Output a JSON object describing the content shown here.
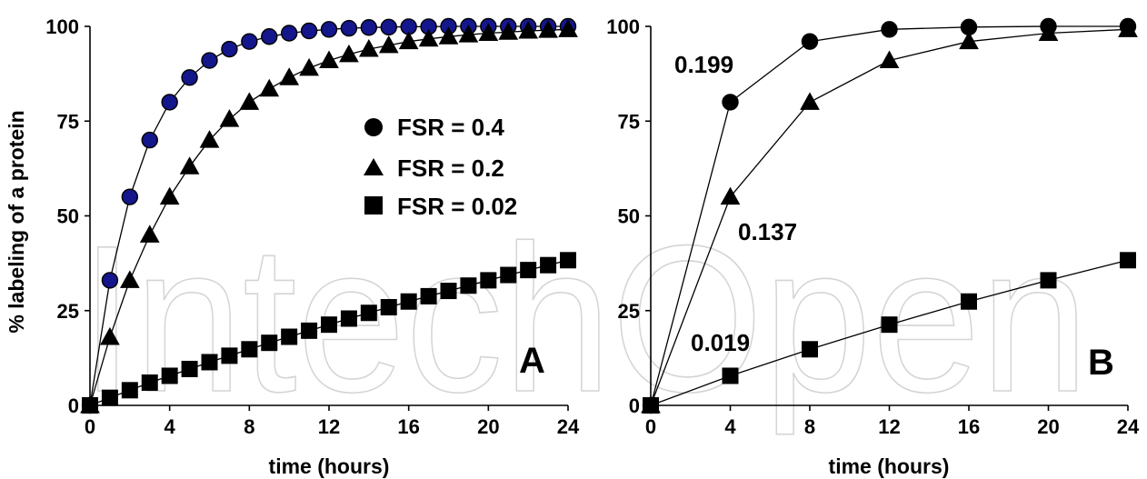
{
  "watermark": "IntechOpen",
  "colors": {
    "fsr04_fill": "#14168c",
    "ink": "#000000",
    "watermark": "#d4d4d4"
  },
  "chart_data": [
    {
      "panel": "A",
      "type": "line",
      "xlabel": "time (hours)",
      "ylabel": "% labeling of a protein",
      "xlim": [
        0,
        24
      ],
      "ylim": [
        0,
        100
      ],
      "xticks": [
        0,
        4,
        8,
        12,
        16,
        20,
        24
      ],
      "yticks": [
        0,
        25,
        50,
        75,
        100
      ],
      "legend_position": "upper-right",
      "series": [
        {
          "name": "FSR = 0.4",
          "marker": "circle",
          "x": [
            0,
            1,
            2,
            3,
            4,
            5,
            6,
            7,
            8,
            9,
            10,
            11,
            12,
            13,
            14,
            15,
            16,
            17,
            18,
            19,
            20,
            21,
            22,
            23,
            24
          ],
          "y": [
            0,
            33,
            55,
            70,
            80,
            86.5,
            91,
            94,
            96,
            97.3,
            98.2,
            98.8,
            99.2,
            99.5,
            99.7,
            99.8,
            99.9,
            99.9,
            100,
            100,
            100,
            100,
            100,
            100,
            100
          ]
        },
        {
          "name": "FSR = 0.2",
          "marker": "triangle",
          "x": [
            0,
            1,
            2,
            3,
            4,
            5,
            6,
            7,
            8,
            9,
            10,
            11,
            12,
            13,
            14,
            15,
            16,
            17,
            18,
            19,
            20,
            21,
            22,
            23,
            24
          ],
          "y": [
            0,
            18,
            33,
            45,
            55,
            63,
            70,
            75.5,
            80,
            83.5,
            86.5,
            89,
            91,
            92.6,
            94,
            95,
            96,
            96.7,
            97.3,
            97.8,
            98.2,
            98.5,
            98.8,
            99,
            99.2
          ]
        },
        {
          "name": "FSR = 0.02",
          "marker": "square",
          "x": [
            0,
            1,
            2,
            3,
            4,
            5,
            6,
            7,
            8,
            9,
            10,
            11,
            12,
            13,
            14,
            15,
            16,
            17,
            18,
            19,
            20,
            21,
            22,
            23,
            24
          ],
          "y": [
            0,
            2,
            4,
            6,
            7.8,
            9.6,
            11.4,
            13.1,
            14.8,
            16.5,
            18.1,
            19.7,
            21.3,
            22.9,
            24.4,
            25.9,
            27.4,
            28.8,
            30.2,
            31.6,
            33,
            34.4,
            35.7,
            37,
            38.3
          ]
        }
      ],
      "annotations": [
        "A"
      ]
    },
    {
      "panel": "B",
      "type": "line",
      "xlabel": "time (hours)",
      "ylabel": "",
      "xlim": [
        0,
        24
      ],
      "ylim": [
        0,
        100
      ],
      "xticks": [
        0,
        4,
        8,
        12,
        16,
        20,
        24
      ],
      "yticks": [
        0,
        25,
        50,
        75,
        100
      ],
      "series": [
        {
          "marker": "circle",
          "x": [
            0,
            4,
            8,
            12,
            16,
            20,
            24
          ],
          "y": [
            0,
            80,
            96,
            99.2,
            99.8,
            100,
            100
          ],
          "label": "0.199"
        },
        {
          "marker": "triangle",
          "x": [
            0,
            4,
            8,
            12,
            16,
            20,
            24
          ],
          "y": [
            0,
            55,
            80,
            91,
            96,
            98.2,
            99.2
          ],
          "label": "0.137"
        },
        {
          "marker": "square",
          "x": [
            0,
            4,
            8,
            12,
            16,
            20,
            24
          ],
          "y": [
            0,
            7.8,
            14.8,
            21.3,
            27.4,
            33,
            38.3
          ],
          "label": "0.019"
        }
      ],
      "annotations": [
        "B"
      ]
    }
  ]
}
